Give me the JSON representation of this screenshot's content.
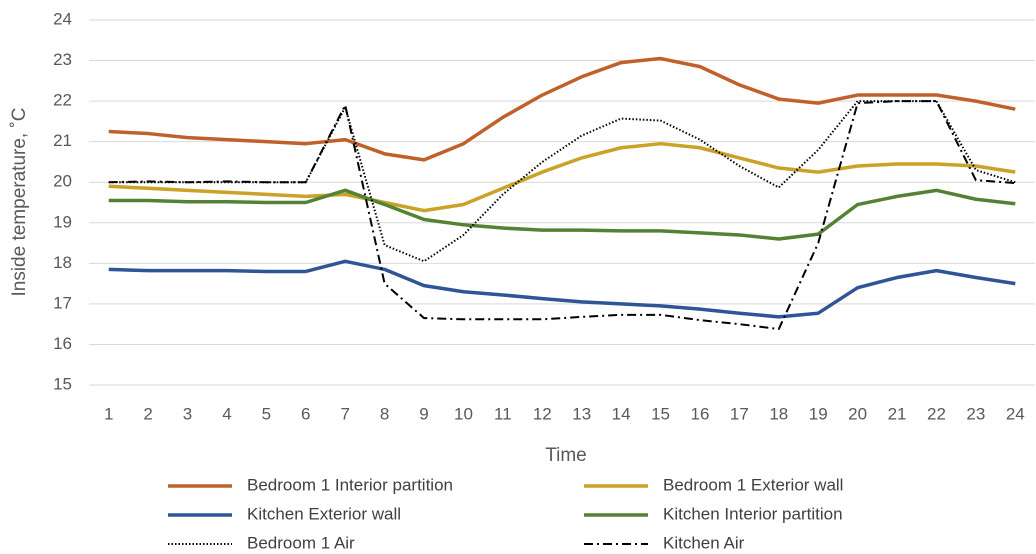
{
  "chart_data": {
    "type": "line",
    "x_label": "Time",
    "y_label": "Inside temperature, ˚C",
    "categories": [
      "1",
      "2",
      "3",
      "4",
      "5",
      "6",
      "7",
      "8",
      "9",
      "10",
      "11",
      "12",
      "13",
      "14",
      "15",
      "16",
      "17",
      "18",
      "19",
      "20",
      "21",
      "22",
      "23",
      "24"
    ],
    "ylim": [
      15,
      24
    ],
    "yticks": [
      15,
      16,
      17,
      18,
      19,
      20,
      21,
      22,
      23,
      24
    ],
    "grid": true,
    "legend": "bottom",
    "series": [
      {
        "name": "Bedroom 1 Interior partition",
        "color": "#c0602a",
        "line_style": "solid",
        "values": [
          21.25,
          21.2,
          21.1,
          21.05,
          21.0,
          20.95,
          21.05,
          20.7,
          20.55,
          20.95,
          21.6,
          22.15,
          22.6,
          22.95,
          23.05,
          22.85,
          22.4,
          22.05,
          21.95,
          22.15,
          22.15,
          22.15,
          22.0,
          21.8
        ]
      },
      {
        "name": "Bedroom 1 Exterior wall",
        "color": "#c9a227",
        "line_style": "solid",
        "values": [
          19.9,
          19.85,
          19.8,
          19.75,
          19.7,
          19.65,
          19.7,
          19.5,
          19.3,
          19.45,
          19.85,
          20.25,
          20.6,
          20.85,
          20.95,
          20.85,
          20.6,
          20.35,
          20.25,
          20.4,
          20.45,
          20.45,
          20.4,
          20.25
        ]
      },
      {
        "name": "Kitchen Exterior wall",
        "color": "#2f5597",
        "line_style": "solid",
        "values": [
          17.85,
          17.82,
          17.82,
          17.82,
          17.8,
          17.8,
          18.05,
          17.85,
          17.45,
          17.3,
          17.22,
          17.13,
          17.05,
          17.0,
          16.95,
          16.87,
          16.77,
          16.68,
          16.77,
          17.4,
          17.65,
          17.82,
          17.65,
          17.5
        ]
      },
      {
        "name": "Kitchen Interior partition",
        "color": "#548235",
        "line_style": "solid",
        "values": [
          19.55,
          19.55,
          19.52,
          19.52,
          19.5,
          19.5,
          19.8,
          19.45,
          19.08,
          18.95,
          18.87,
          18.82,
          18.82,
          18.8,
          18.8,
          18.75,
          18.7,
          18.6,
          18.72,
          19.45,
          19.65,
          19.8,
          19.58,
          19.47
        ]
      },
      {
        "name": "Bedroom 1 Air",
        "color": "#000000",
        "line_style": "dotted",
        "values": [
          20.0,
          20.0,
          20.0,
          20.0,
          20.0,
          20.0,
          21.85,
          18.45,
          18.05,
          18.7,
          19.7,
          20.5,
          21.15,
          21.57,
          21.52,
          21.05,
          20.4,
          19.87,
          20.8,
          22.0,
          22.0,
          22.0,
          20.3,
          20.0
        ]
      },
      {
        "name": "Kitchen Air",
        "color": "#000000",
        "line_style": "dashdot",
        "values": [
          20.0,
          20.02,
          20.0,
          20.02,
          20.0,
          20.0,
          21.9,
          17.5,
          16.65,
          16.62,
          16.62,
          16.62,
          16.68,
          16.73,
          16.73,
          16.6,
          16.5,
          16.38,
          18.5,
          21.95,
          22.0,
          22.0,
          20.05,
          19.98
        ]
      }
    ]
  }
}
